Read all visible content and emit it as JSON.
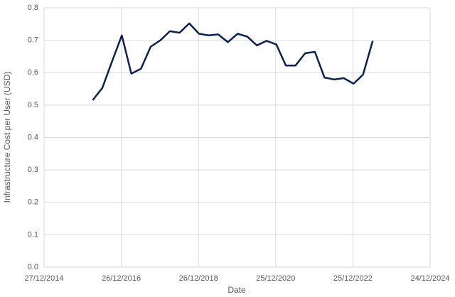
{
  "chart_data": {
    "type": "line",
    "x_label": "Date",
    "y_label": "Infrastructure Cost per User (USD)",
    "x": [
      "2016-03-31",
      "2016-06-30",
      "2016-09-30",
      "2016-12-31",
      "2017-03-31",
      "2017-06-30",
      "2017-09-30",
      "2017-12-31",
      "2018-03-31",
      "2018-06-30",
      "2018-09-30",
      "2018-12-31",
      "2019-03-31",
      "2019-06-30",
      "2019-09-30",
      "2019-12-31",
      "2020-03-31",
      "2020-06-30",
      "2020-09-30",
      "2020-12-31",
      "2021-03-31",
      "2021-06-30",
      "2021-09-30",
      "2021-12-31",
      "2022-03-31",
      "2022-06-30",
      "2022-09-30",
      "2022-12-31",
      "2023-03-31",
      "2023-06-30"
    ],
    "values": [
      0.515,
      0.553,
      0.635,
      0.715,
      0.597,
      0.612,
      0.68,
      0.7,
      0.728,
      0.723,
      0.752,
      0.72,
      0.715,
      0.718,
      0.694,
      0.72,
      0.711,
      0.684,
      0.698,
      0.687,
      0.622,
      0.622,
      0.66,
      0.664,
      0.585,
      0.579,
      0.583,
      0.566,
      0.594,
      0.698
    ],
    "color": "#0d2151",
    "xlim": [
      "2014-12-27",
      "2024-12-24"
    ],
    "xticks": [
      {
        "value": "2014-12-27",
        "label": "27/12/2014"
      },
      {
        "value": "2016-12-26",
        "label": "26/12/2016"
      },
      {
        "value": "2018-12-26",
        "label": "26/12/2018"
      },
      {
        "value": "2020-12-25",
        "label": "25/12/2020"
      },
      {
        "value": "2022-12-25",
        "label": "25/12/2022"
      },
      {
        "value": "2024-12-24",
        "label": "24/12/2024"
      }
    ],
    "ylim": [
      0,
      0.8
    ],
    "yticks": [
      {
        "value": 0,
        "label": "0.0"
      },
      {
        "value": 0.1,
        "label": "0.1"
      },
      {
        "value": 0.2,
        "label": "0.2"
      },
      {
        "value": 0.3,
        "label": "0.3"
      },
      {
        "value": 0.4,
        "label": "0.4"
      },
      {
        "value": 0.5,
        "label": "0.5"
      },
      {
        "value": 0.6,
        "label": "0.6"
      },
      {
        "value": 0.7,
        "label": "0.7"
      },
      {
        "value": 0.8,
        "label": "0.8"
      }
    ],
    "grid": true
  }
}
